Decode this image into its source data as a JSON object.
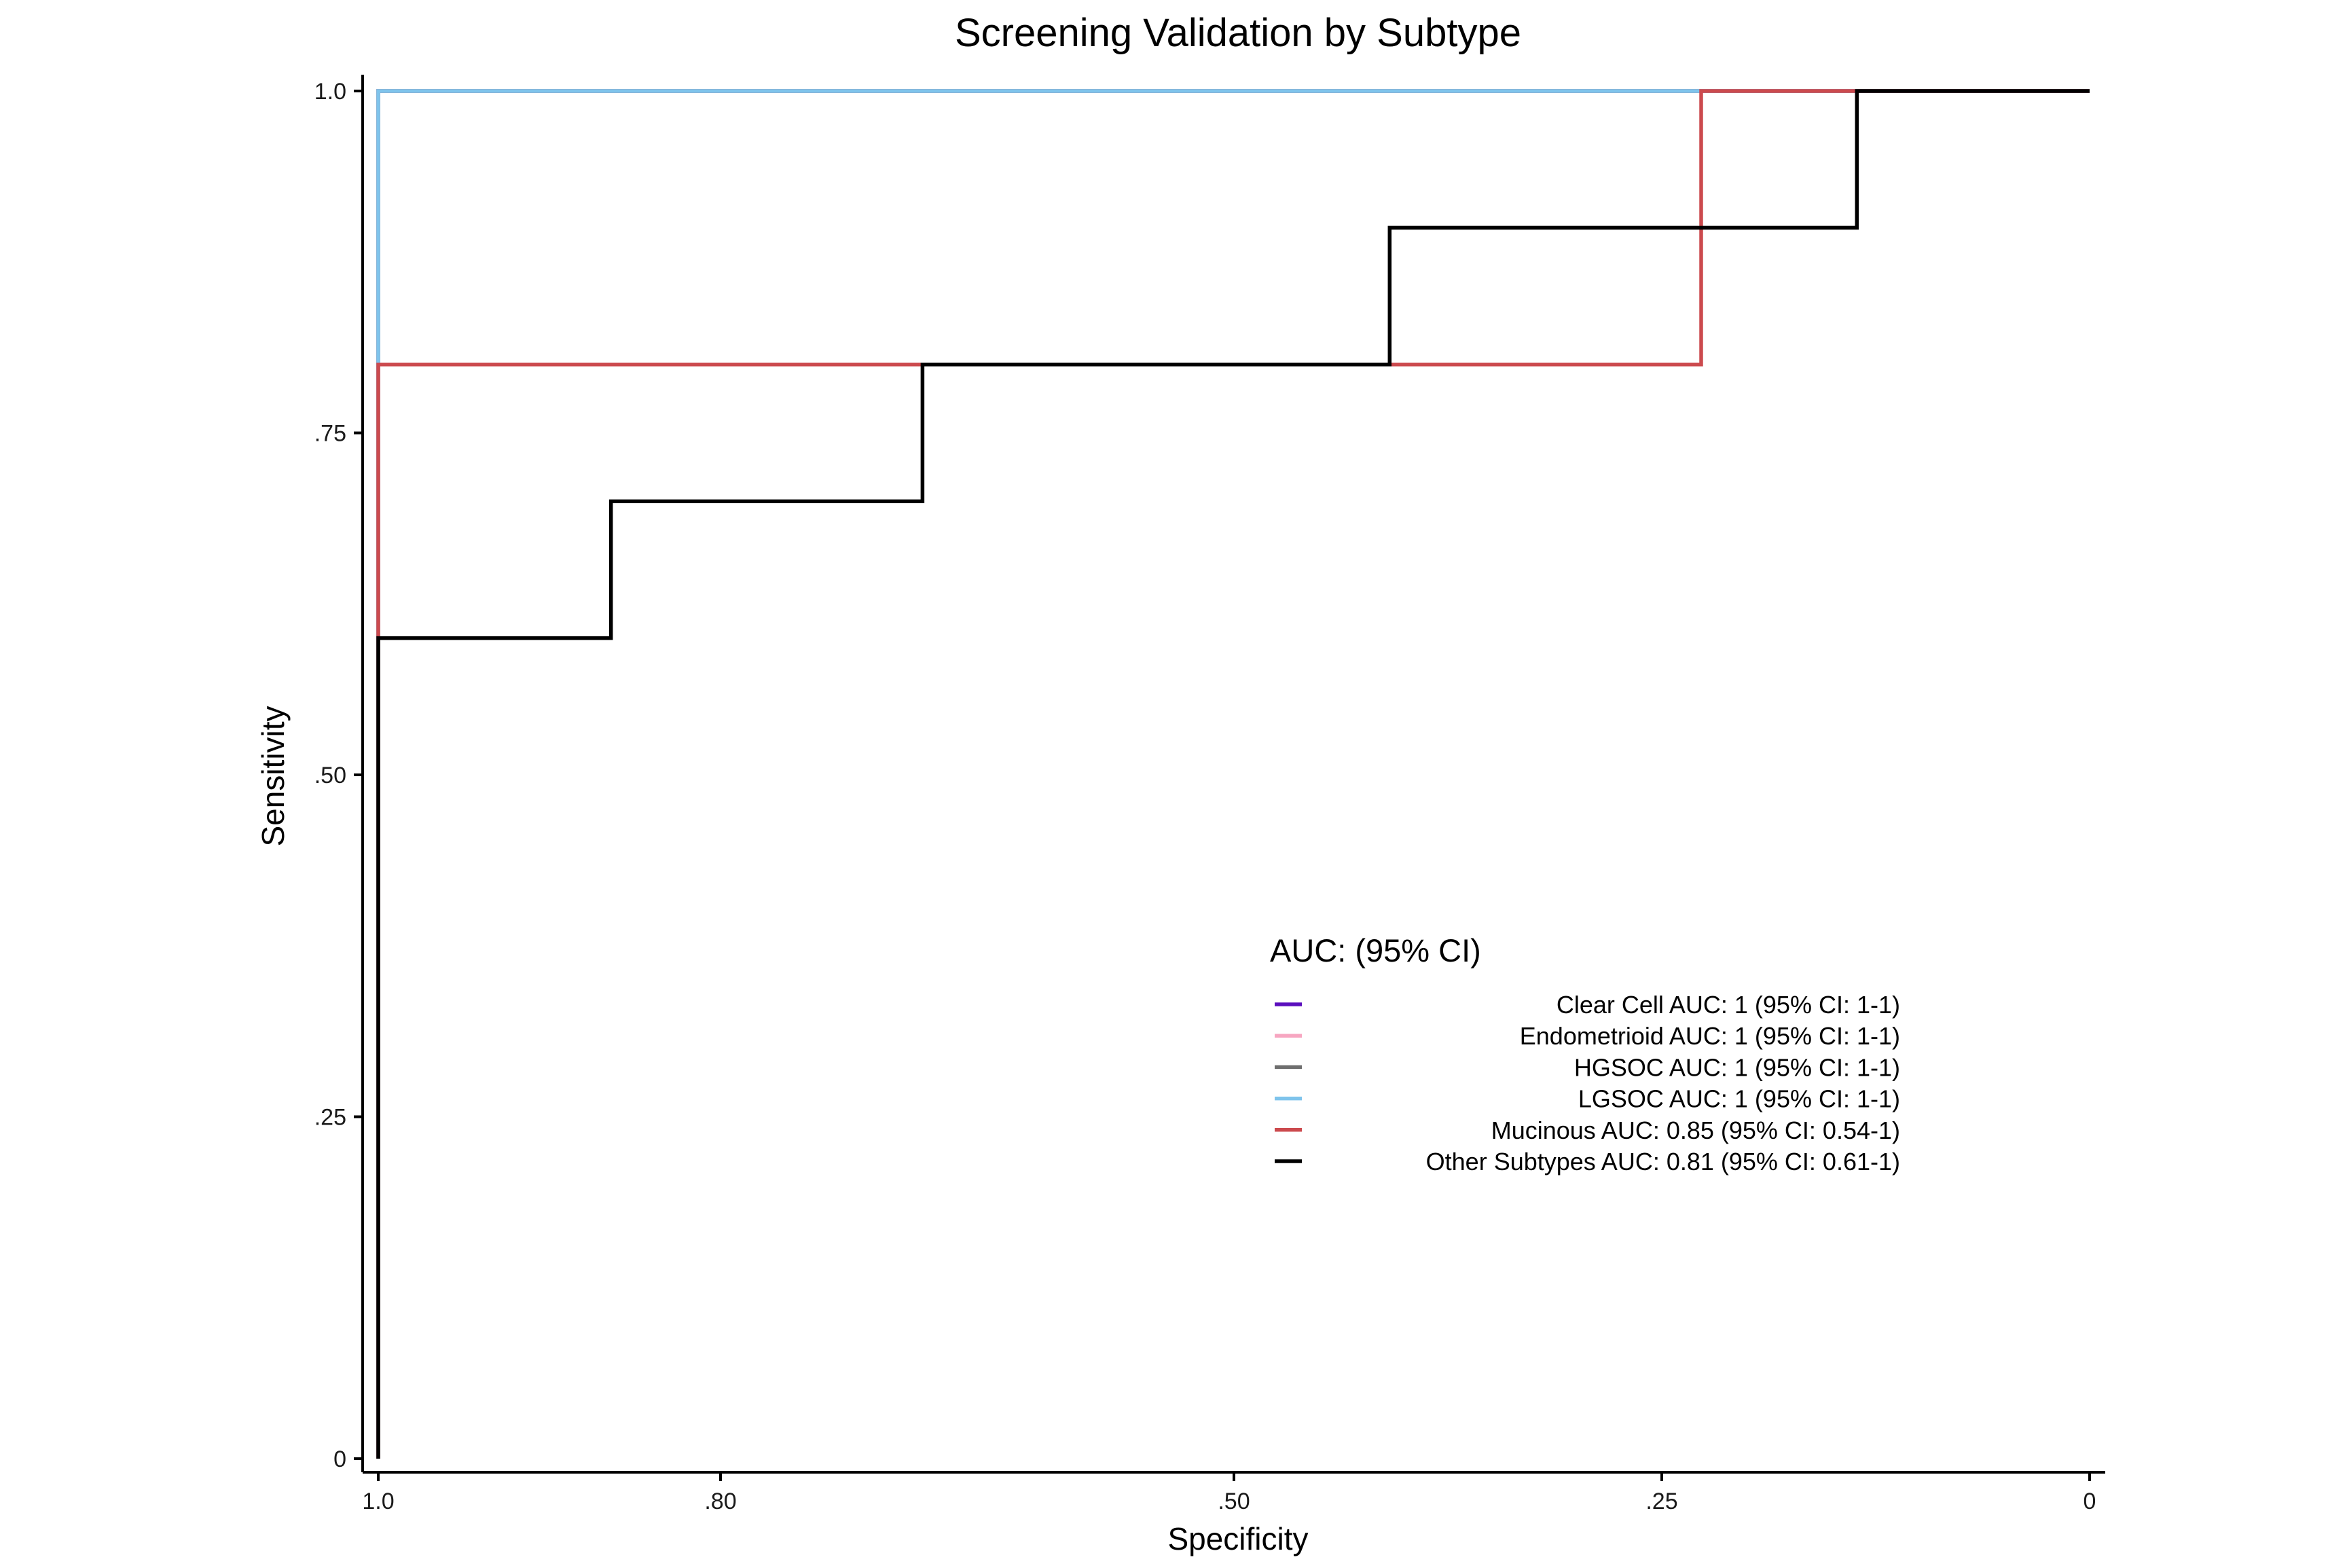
{
  "chart_data": {
    "type": "line",
    "title": "Screening Validation by Subtype",
    "xlabel": "Specificity",
    "ylabel": "Sensitivity",
    "xlim": [
      1.0,
      0
    ],
    "ylim": [
      0,
      1.0
    ],
    "x_reversed": true,
    "grid": false,
    "legend_position": "bottom-right",
    "legend_title": "AUC: (95% CI)",
    "x_ticks": [
      {
        "value": 1.0,
        "label": "1.0"
      },
      {
        "value": 0.8,
        "label": ".80"
      },
      {
        "value": 0.5,
        "label": ".50"
      },
      {
        "value": 0.25,
        "label": ".25"
      },
      {
        "value": 0,
        "label": "0"
      }
    ],
    "y_ticks": [
      {
        "value": 0,
        "label": "0"
      },
      {
        "value": 0.25,
        "label": ".25"
      },
      {
        "value": 0.5,
        "label": ".50"
      },
      {
        "value": 0.75,
        "label": ".75"
      },
      {
        "value": 1.0,
        "label": "1.0"
      }
    ],
    "series": [
      {
        "name": "Clear Cell AUC: 1 (95% CI: 1-1)",
        "color": "#5b0fbd",
        "points": [
          [
            1.0,
            0
          ],
          [
            1.0,
            1.0
          ],
          [
            0,
            1.0
          ]
        ]
      },
      {
        "name": "Endometrioid AUC: 1 (95% CI: 1-1)",
        "color": "#f7a6c1",
        "points": [
          [
            1.0,
            0
          ],
          [
            1.0,
            1.0
          ],
          [
            0,
            1.0
          ]
        ]
      },
      {
        "name": "HGSOC AUC: 1 (95% CI: 1-1)",
        "color": "#6e6e6e",
        "points": [
          [
            1.0,
            0
          ],
          [
            1.0,
            1.0
          ],
          [
            0,
            1.0
          ]
        ]
      },
      {
        "name": "LGSOC AUC: 1 (95% CI: 1-1)",
        "color": "#7fc4ec",
        "points": [
          [
            1.0,
            0
          ],
          [
            1.0,
            1.0
          ],
          [
            0,
            1.0
          ]
        ]
      },
      {
        "name": "Mucinous AUC: 0.85 (95% CI: 0.54-1)",
        "color": "#cc4a4e",
        "points": [
          [
            1.0,
            0
          ],
          [
            1.0,
            0.8
          ],
          [
            0.227,
            0.8
          ],
          [
            0.227,
            1.0
          ],
          [
            0,
            1.0
          ]
        ]
      },
      {
        "name": "Other Subtypes AUC: 0.81 (95% CI: 0.61-1)",
        "color": "#000000",
        "points": [
          [
            1.0,
            0
          ],
          [
            1.0,
            0.6
          ],
          [
            0.864,
            0.6
          ],
          [
            0.864,
            0.7
          ],
          [
            0.682,
            0.7
          ],
          [
            0.682,
            0.8
          ],
          [
            0.409,
            0.8
          ],
          [
            0.409,
            0.9
          ],
          [
            0.136,
            0.9
          ],
          [
            0.136,
            1.0
          ],
          [
            0,
            1.0
          ]
        ]
      }
    ]
  }
}
